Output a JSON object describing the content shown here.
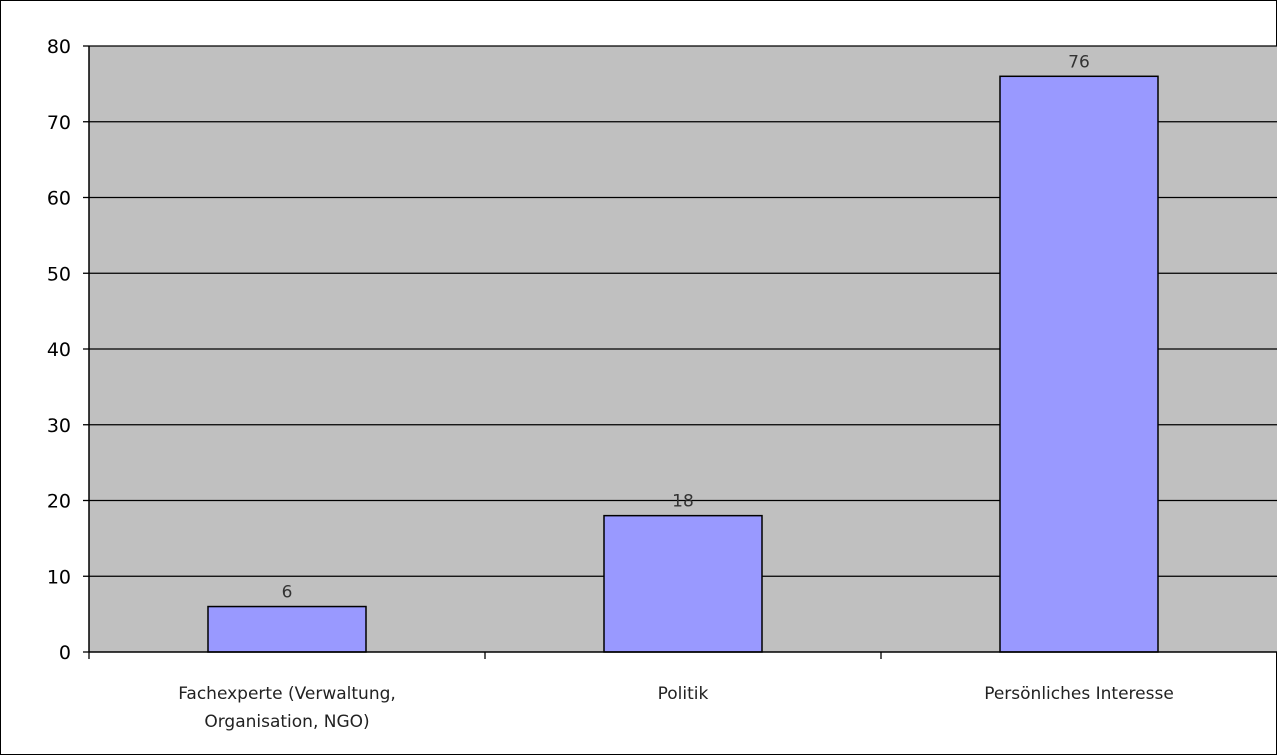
{
  "chart_data": {
    "type": "bar",
    "title": "",
    "xlabel": "",
    "ylabel": "",
    "categories": [
      [
        "Fachexperte (Verwaltung,",
        "Organisation, NGO)"
      ],
      [
        "Politik"
      ],
      [
        "Persönliches Interesse"
      ]
    ],
    "values": [
      6,
      18,
      76
    ],
    "data_labels": [
      "6",
      "18",
      "76"
    ],
    "ylim": [
      0,
      80
    ],
    "yticks": [
      0,
      10,
      20,
      30,
      40,
      50,
      60,
      70,
      80
    ],
    "grid": true,
    "legend": "none",
    "colors": {
      "plot_background": "#c0c0c0",
      "bar_fill": "#9999ff",
      "bar_stroke": "#000000",
      "gridline": "#000000"
    }
  }
}
